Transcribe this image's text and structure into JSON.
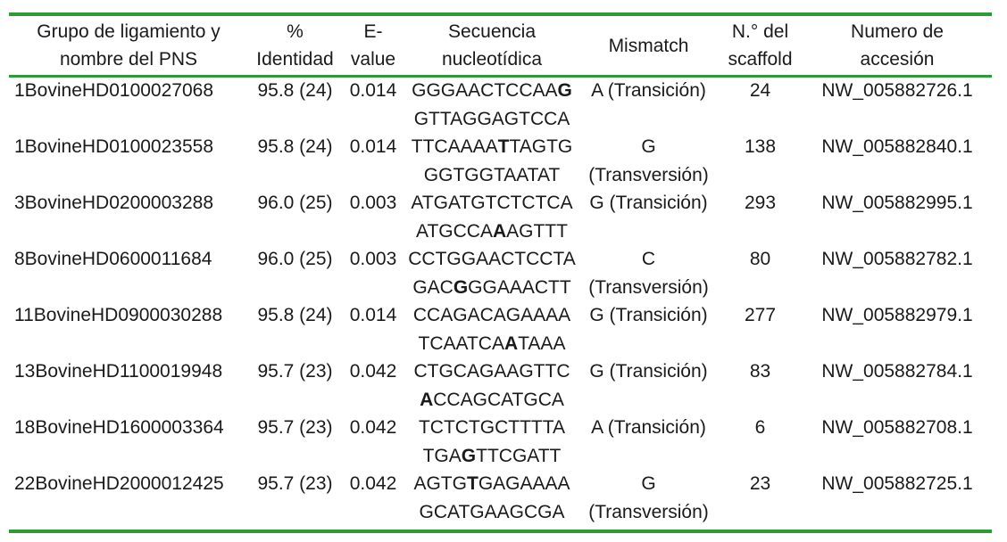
{
  "headers": {
    "group": [
      "Grupo de ligamiento y",
      "nombre del PNS"
    ],
    "identity": [
      "%",
      "Identidad"
    ],
    "evalue": [
      "E-",
      "value"
    ],
    "sequence": [
      "Secuencia",
      "nucleotídica"
    ],
    "mismatch": "Mismatch",
    "scaffold": [
      "N.° del",
      "scaffold"
    ],
    "accession": [
      "Numero de",
      "accesión"
    ]
  },
  "rows": [
    {
      "group": "1BovineHD0100027068",
      "identity": "95.8 (24)",
      "evalue": "0.014",
      "seq1": {
        "pre": "GGGAACTCCAA",
        "bold": "G",
        "post": ""
      },
      "seq2": {
        "pre": "GTTAGGAGTCCA",
        "bold": "",
        "post": ""
      },
      "mismatch": [
        "A (Transición)",
        ""
      ],
      "scaffold": "24",
      "accession": "NW_005882726.1"
    },
    {
      "group": "1BovineHD0100023558",
      "identity": "95.8 (24)",
      "evalue": "0.014",
      "seq1": {
        "pre": "TTCAAAA",
        "bold": "T",
        "post": "TAGTG"
      },
      "seq2": {
        "pre": "GGTGGTAATAT",
        "bold": "",
        "post": ""
      },
      "mismatch": [
        "G",
        "(Transversión)"
      ],
      "scaffold": "138",
      "accession": "NW_005882840.1"
    },
    {
      "group": "3BovineHD0200003288",
      "identity": "96.0 (25)",
      "evalue": "0.003",
      "seq1": {
        "pre": "ATGATGTCTCTCA",
        "bold": "",
        "post": ""
      },
      "seq2": {
        "pre": "ATGCCA",
        "bold": "A",
        "post": "AGTTT"
      },
      "mismatch": [
        "G (Transición)",
        ""
      ],
      "scaffold": "293",
      "accession": "NW_005882995.1"
    },
    {
      "group": "8BovineHD0600011684",
      "identity": "96.0 (25)",
      "evalue": "0.003",
      "seq1": {
        "pre": "CCTGGAACTCCTA",
        "bold": "",
        "post": ""
      },
      "seq2": {
        "pre": "GAC",
        "bold": "G",
        "post": "GGAAACTT"
      },
      "mismatch": [
        "C",
        "(Transversión)"
      ],
      "scaffold": "80",
      "accession": "NW_005882782.1"
    },
    {
      "group": "11BovineHD0900030288",
      "identity": "95.8 (24)",
      "evalue": "0.014",
      "seq1": {
        "pre": "CCAGACAGAAAA",
        "bold": "",
        "post": ""
      },
      "seq2": {
        "pre": "TCAATCA",
        "bold": "A",
        "post": "TAAA"
      },
      "mismatch": [
        "G (Transición)",
        ""
      ],
      "scaffold": "277",
      "accession": "NW_005882979.1"
    },
    {
      "group": "13BovineHD1100019948",
      "identity": "95.7 (23)",
      "evalue": "0.042",
      "seq1": {
        "pre": "CTGCAGAAGTTC",
        "bold": "",
        "post": ""
      },
      "seq2": {
        "pre": "",
        "bold": "A",
        "post": "CCAGCATGCA"
      },
      "mismatch": [
        "G (Transición)",
        ""
      ],
      "scaffold": "83",
      "accession": "NW_005882784.1"
    },
    {
      "group": "18BovineHD1600003364",
      "identity": "95.7 (23)",
      "evalue": "0.042",
      "seq1": {
        "pre": "TCTCTGCTTTTA",
        "bold": "",
        "post": ""
      },
      "seq2": {
        "pre": "TGA",
        "bold": "G",
        "post": "TTCGATT"
      },
      "mismatch": [
        "A (Transición)",
        ""
      ],
      "scaffold": "6",
      "accession": "NW_005882708.1"
    },
    {
      "group": "22BovineHD2000012425",
      "identity": "95.7 (23)",
      "evalue": "0.042",
      "seq1": {
        "pre": "AGTG",
        "bold": "T",
        "post": "GAGAAAA"
      },
      "seq2": {
        "pre": "GCATGAAGCGA",
        "bold": "",
        "post": ""
      },
      "mismatch": [
        "G",
        "(Transversión)"
      ],
      "scaffold": "23",
      "accession": "NW_005882725.1"
    }
  ]
}
